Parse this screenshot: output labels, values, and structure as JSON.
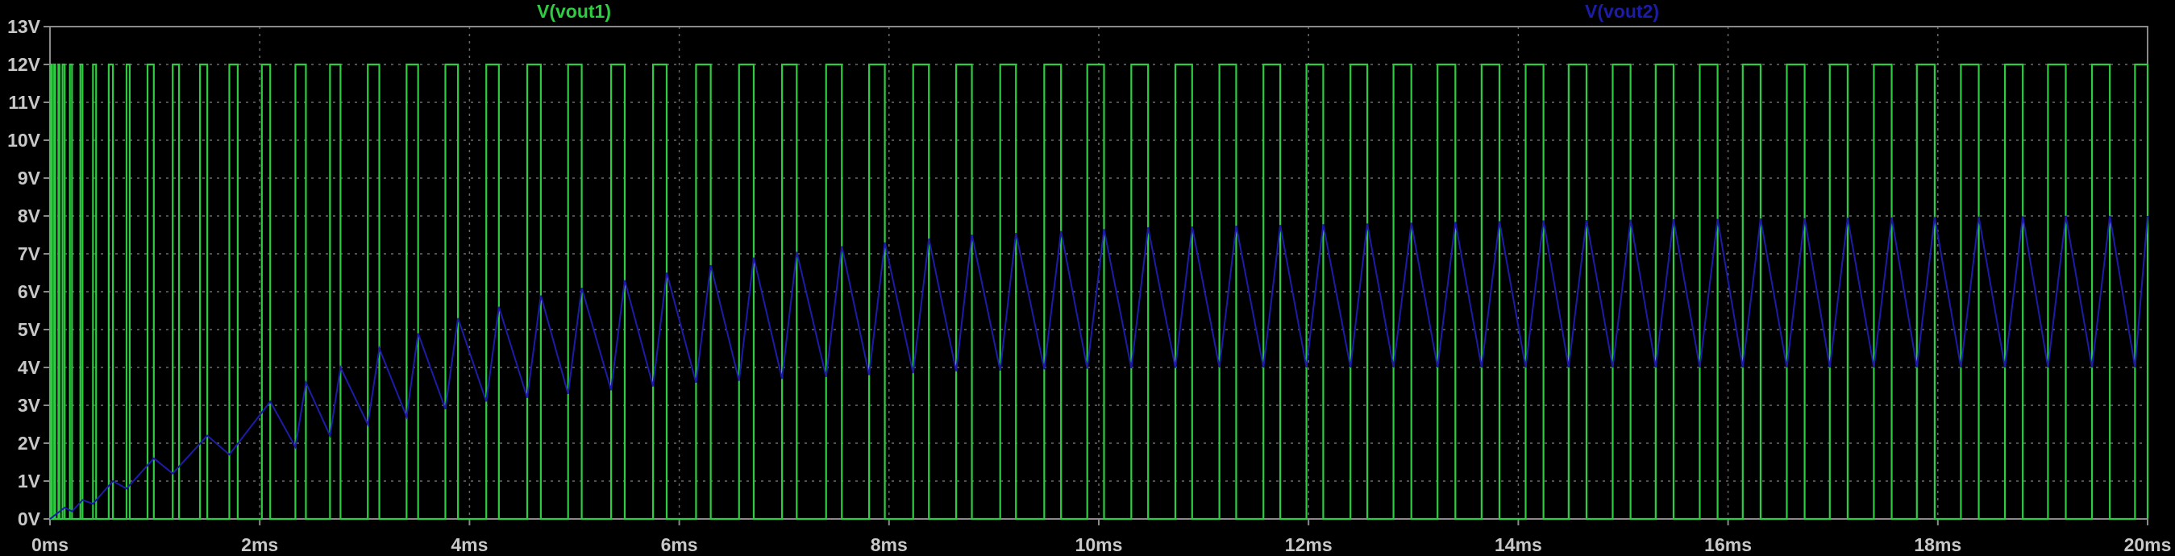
{
  "chart_data": {
    "type": "line",
    "title": "",
    "xlabel": "",
    "ylabel": "",
    "xlim": [
      0,
      20
    ],
    "ylim": [
      0,
      13
    ],
    "x_unit": "ms",
    "y_unit": "V",
    "grid": true,
    "legend_placement": "top",
    "x_ticks": [
      {
        "value": 0,
        "label": "0ms"
      },
      {
        "value": 2,
        "label": "2ms"
      },
      {
        "value": 4,
        "label": "4ms"
      },
      {
        "value": 6,
        "label": "6ms"
      },
      {
        "value": 8,
        "label": "8ms"
      },
      {
        "value": 10,
        "label": "10ms"
      },
      {
        "value": 12,
        "label": "12ms"
      },
      {
        "value": 14,
        "label": "14ms"
      },
      {
        "value": 16,
        "label": "16ms"
      },
      {
        "value": 18,
        "label": "18ms"
      },
      {
        "value": 20,
        "label": "20ms"
      }
    ],
    "y_ticks": [
      {
        "value": 0,
        "label": "0V"
      },
      {
        "value": 1,
        "label": "1V"
      },
      {
        "value": 2,
        "label": "2V"
      },
      {
        "value": 3,
        "label": "3V"
      },
      {
        "value": 4,
        "label": "4V"
      },
      {
        "value": 5,
        "label": "5V"
      },
      {
        "value": 6,
        "label": "6V"
      },
      {
        "value": 7,
        "label": "7V"
      },
      {
        "value": 8,
        "label": "8V"
      },
      {
        "value": 9,
        "label": "9V"
      },
      {
        "value": 10,
        "label": "10V"
      },
      {
        "value": 11,
        "label": "11V"
      },
      {
        "value": 12,
        "label": "12V"
      },
      {
        "value": 13,
        "label": "13V"
      }
    ],
    "series": [
      {
        "name": "V(vout1)",
        "color": "#2ecc40",
        "style": "pulse",
        "high": 12,
        "low": 0,
        "pulses": [
          [
            0.01,
            0.02
          ],
          [
            0.04,
            0.05
          ],
          [
            0.08,
            0.09
          ],
          [
            0.12,
            0.14
          ],
          [
            0.19,
            0.21
          ],
          [
            0.29,
            0.31
          ],
          [
            0.41,
            0.44
          ],
          [
            0.56,
            0.6
          ],
          [
            0.73,
            0.76
          ],
          [
            0.93,
            0.99
          ],
          [
            1.17,
            1.23
          ],
          [
            1.43,
            1.5
          ],
          [
            1.71,
            1.79
          ],
          [
            2.02,
            2.1
          ],
          [
            2.34,
            2.44
          ],
          [
            2.67,
            2.77
          ],
          [
            3.03,
            3.14
          ],
          [
            3.4,
            3.51
          ],
          [
            3.77,
            3.89
          ],
          [
            4.16,
            4.28
          ],
          [
            4.55,
            4.68
          ],
          [
            4.94,
            5.07
          ],
          [
            5.35,
            5.48
          ],
          [
            5.75,
            5.88
          ],
          [
            6.16,
            6.3
          ],
          [
            6.57,
            6.71
          ],
          [
            6.98,
            7.12
          ],
          [
            7.4,
            7.55
          ],
          [
            7.81,
            7.96
          ],
          [
            8.23,
            8.38
          ],
          [
            8.64,
            8.79
          ],
          [
            9.06,
            9.21
          ],
          [
            9.48,
            9.64
          ],
          [
            9.89,
            10.05
          ],
          [
            10.31,
            10.47
          ],
          [
            10.73,
            10.89
          ],
          [
            11.15,
            11.31
          ],
          [
            11.57,
            11.73
          ],
          [
            11.98,
            12.14
          ],
          [
            12.4,
            12.56
          ],
          [
            12.81,
            12.98
          ],
          [
            13.23,
            13.4
          ],
          [
            13.65,
            13.82
          ],
          [
            14.07,
            14.24
          ],
          [
            14.48,
            14.65
          ],
          [
            14.9,
            15.07
          ],
          [
            15.31,
            15.48
          ],
          [
            15.73,
            15.9
          ],
          [
            16.14,
            16.31
          ],
          [
            16.56,
            16.73
          ],
          [
            16.97,
            17.14
          ],
          [
            17.39,
            17.56
          ],
          [
            17.8,
            17.97
          ],
          [
            18.22,
            18.39
          ],
          [
            18.64,
            18.81
          ],
          [
            19.05,
            19.22
          ],
          [
            19.47,
            19.64
          ],
          [
            19.88,
            20.0
          ]
        ]
      },
      {
        "name": "V(vout2)",
        "color": "#1c1ca8",
        "style": "line",
        "x": [
          0.0,
          0.14,
          0.21,
          0.31,
          0.41,
          0.6,
          0.73,
          0.99,
          1.17,
          1.5,
          1.71,
          2.1,
          2.34,
          2.44,
          2.67,
          2.77,
          3.03,
          3.14,
          3.4,
          3.51,
          3.77,
          3.89,
          4.16,
          4.28,
          4.55,
          4.68,
          4.94,
          5.07,
          5.35,
          5.48,
          5.75,
          5.88,
          6.16,
          6.3,
          6.57,
          6.71,
          6.98,
          7.12,
          7.4,
          7.55,
          7.81,
          7.96,
          8.23,
          8.38,
          8.64,
          8.79,
          9.06,
          9.21,
          9.48,
          9.64,
          9.89,
          10.05,
          10.31,
          10.47,
          10.73,
          10.89,
          11.15,
          11.31,
          11.57,
          11.73,
          11.98,
          12.14,
          12.4,
          12.56,
          12.81,
          12.98,
          13.23,
          13.4,
          13.65,
          13.82,
          14.07,
          14.24,
          14.48,
          14.65,
          14.9,
          15.07,
          15.31,
          15.48,
          15.73,
          15.9,
          16.14,
          16.31,
          16.56,
          16.73,
          16.97,
          17.14,
          17.39,
          17.56,
          17.8,
          17.97,
          18.22,
          18.39,
          18.64,
          18.81,
          19.05,
          19.22,
          19.47,
          19.64,
          19.88,
          20.0
        ],
        "y": [
          0.0,
          0.3,
          0.2,
          0.5,
          0.4,
          1.0,
          0.8,
          1.6,
          1.2,
          2.2,
          1.7,
          3.1,
          1.9,
          3.6,
          2.2,
          4.0,
          2.5,
          4.5,
          2.7,
          4.9,
          2.9,
          5.3,
          3.1,
          5.6,
          3.2,
          5.9,
          3.3,
          6.1,
          3.4,
          6.3,
          3.5,
          6.5,
          3.6,
          6.7,
          3.65,
          6.9,
          3.7,
          7.05,
          3.75,
          7.2,
          3.8,
          7.3,
          3.85,
          7.4,
          3.9,
          7.5,
          3.92,
          7.55,
          3.95,
          7.6,
          3.97,
          7.65,
          3.98,
          7.7,
          3.99,
          7.72,
          4.0,
          7.74,
          4.0,
          7.76,
          4.0,
          7.78,
          4.0,
          7.8,
          4.0,
          7.82,
          4.0,
          7.84,
          4.0,
          7.86,
          4.0,
          7.88,
          4.0,
          7.89,
          4.0,
          7.9,
          4.0,
          7.91,
          4.0,
          7.92,
          4.0,
          7.93,
          4.0,
          7.94,
          4.0,
          7.95,
          4.0,
          7.96,
          4.0,
          7.97,
          4.0,
          7.98,
          4.0,
          7.99,
          4.0,
          8.0,
          4.0,
          8.0,
          4.0,
          8.0
        ]
      }
    ]
  }
}
